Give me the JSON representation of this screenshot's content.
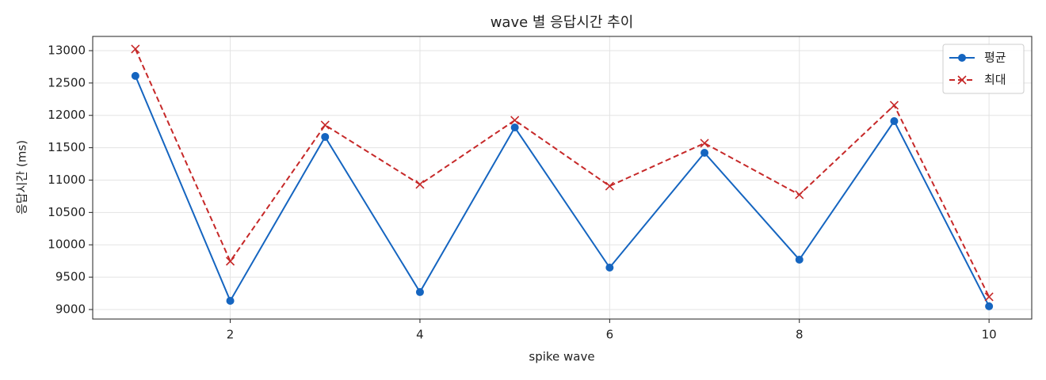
{
  "chart_data": {
    "type": "line",
    "title": "wave 별 응답시간 추이",
    "xlabel": "spike wave",
    "ylabel": "응답시간 (ms)",
    "x": [
      1,
      2,
      3,
      4,
      5,
      6,
      7,
      8,
      9,
      10
    ],
    "series": [
      {
        "name": "평균",
        "color": "#1565c0",
        "marker": "o",
        "linestyle": "solid",
        "values": [
          12610,
          9135,
          11667,
          9270,
          11813,
          9648,
          11422,
          9771,
          11911,
          9050
        ]
      },
      {
        "name": "최대",
        "color": "#c62828",
        "marker": "x",
        "linestyle": "dashed",
        "values": [
          13025,
          9746,
          11850,
          10933,
          11924,
          10908,
          11570,
          10774,
          12156,
          9196
        ]
      }
    ],
    "xlim": [
      0.55,
      10.45
    ],
    "xticks": [
      2,
      4,
      6,
      8,
      10
    ],
    "ylim": [
      8853,
      13220
    ],
    "yticks": [
      9000,
      9500,
      10000,
      10500,
      11000,
      11500,
      12000,
      12500,
      13000
    ],
    "grid": true,
    "legend": "upper right"
  }
}
